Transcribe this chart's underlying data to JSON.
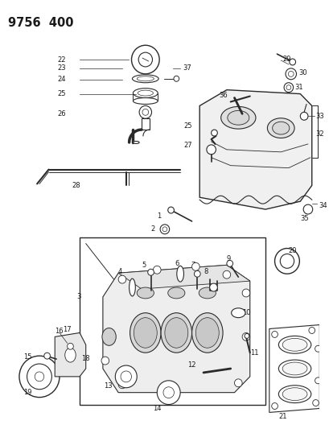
{
  "title": "9756 400",
  "bg_color": "#ffffff",
  "fig_width": 4.1,
  "fig_height": 5.33,
  "dpi": 100,
  "line_color": "#2a2a2a",
  "label_color": "#1a1a1a",
  "label_fs": 6.0,
  "title_fs": 10.5
}
